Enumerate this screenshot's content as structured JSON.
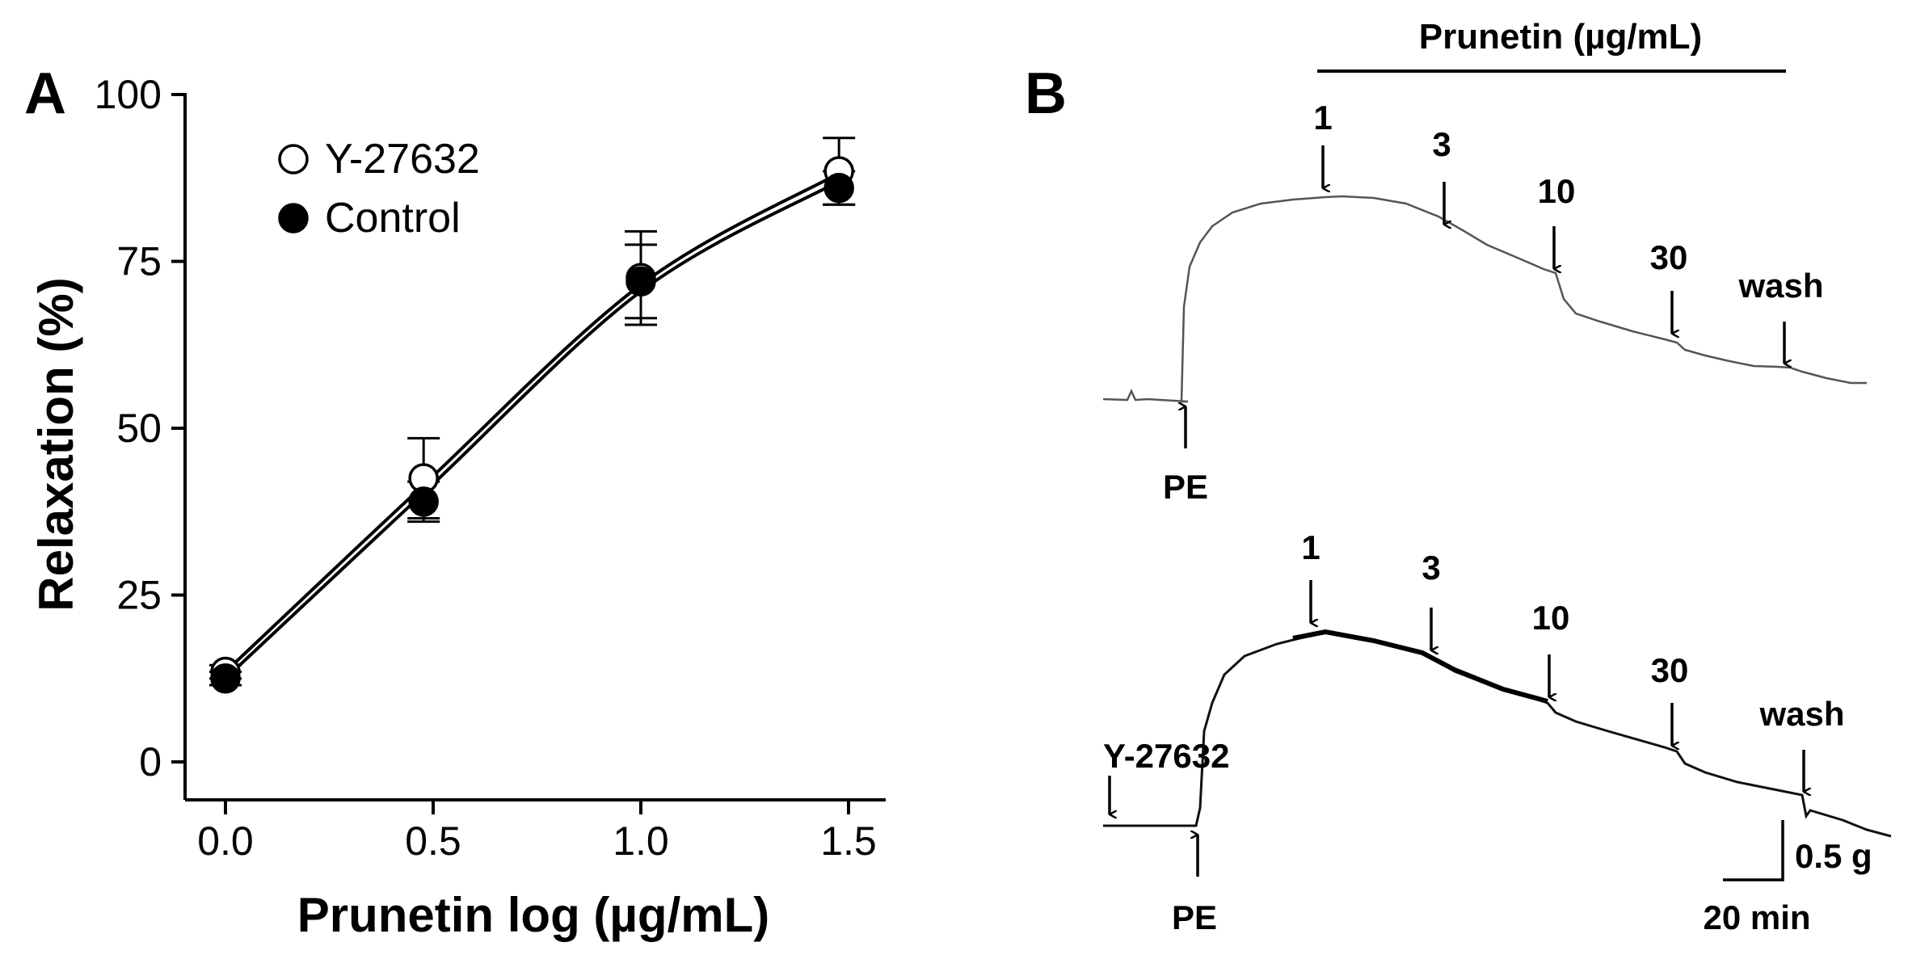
{
  "panel_a": {
    "label": "A",
    "chart_data": {
      "type": "line",
      "title": "",
      "xlabel": "Prunetin log (µg/mL)",
      "ylabel": "Relaxation (%)",
      "xlim": [
        -0.07,
        1.62
      ],
      "ylim": [
        -5,
        100
      ],
      "x_ticks": [
        0.0,
        0.5,
        1.0,
        1.5
      ],
      "x_tick_labels": [
        "0.0",
        "0.5",
        "1.0",
        "1.5"
      ],
      "y_ticks": [
        0,
        25,
        50,
        75,
        100
      ],
      "y_tick_labels": [
        "0",
        "25",
        "50",
        "75",
        "100"
      ],
      "legend_placement": "top-left",
      "grid": false,
      "series": [
        {
          "name": "Y-27632",
          "marker": "open-circle",
          "x": [
            0.0,
            0.477,
            1.0,
            1.477
          ],
          "y": [
            13.5,
            42.5,
            72.5,
            88.5
          ],
          "err": [
            1.0,
            6.0,
            7.0,
            5.0
          ],
          "fit_y": [
            13.5,
            41.5,
            71.5,
            88.2
          ]
        },
        {
          "name": "Control",
          "marker": "filled-circle",
          "x": [
            0.0,
            0.477,
            1.0,
            1.477
          ],
          "y": [
            12.5,
            39.0,
            72.0,
            86.0
          ],
          "err": [
            1.0,
            3.0,
            5.5,
            2.5
          ],
          "fit_y": [
            12.5,
            40.3,
            70.5,
            87.0
          ]
        }
      ]
    }
  },
  "panel_b": {
    "label": "B",
    "bar_label": "Prunetin (µg/mL)",
    "top_trace": {
      "doses": [
        "1",
        "3",
        "10",
        "30",
        "wash"
      ],
      "pe_label": "PE"
    },
    "bottom_trace": {
      "pretreatment_label": "Y-27632",
      "doses": [
        "1",
        "3",
        "10",
        "30",
        "wash"
      ],
      "pe_label": "PE"
    },
    "scale_bar": {
      "vertical_label": "0.5 g",
      "horizontal_label": "20 min"
    }
  }
}
